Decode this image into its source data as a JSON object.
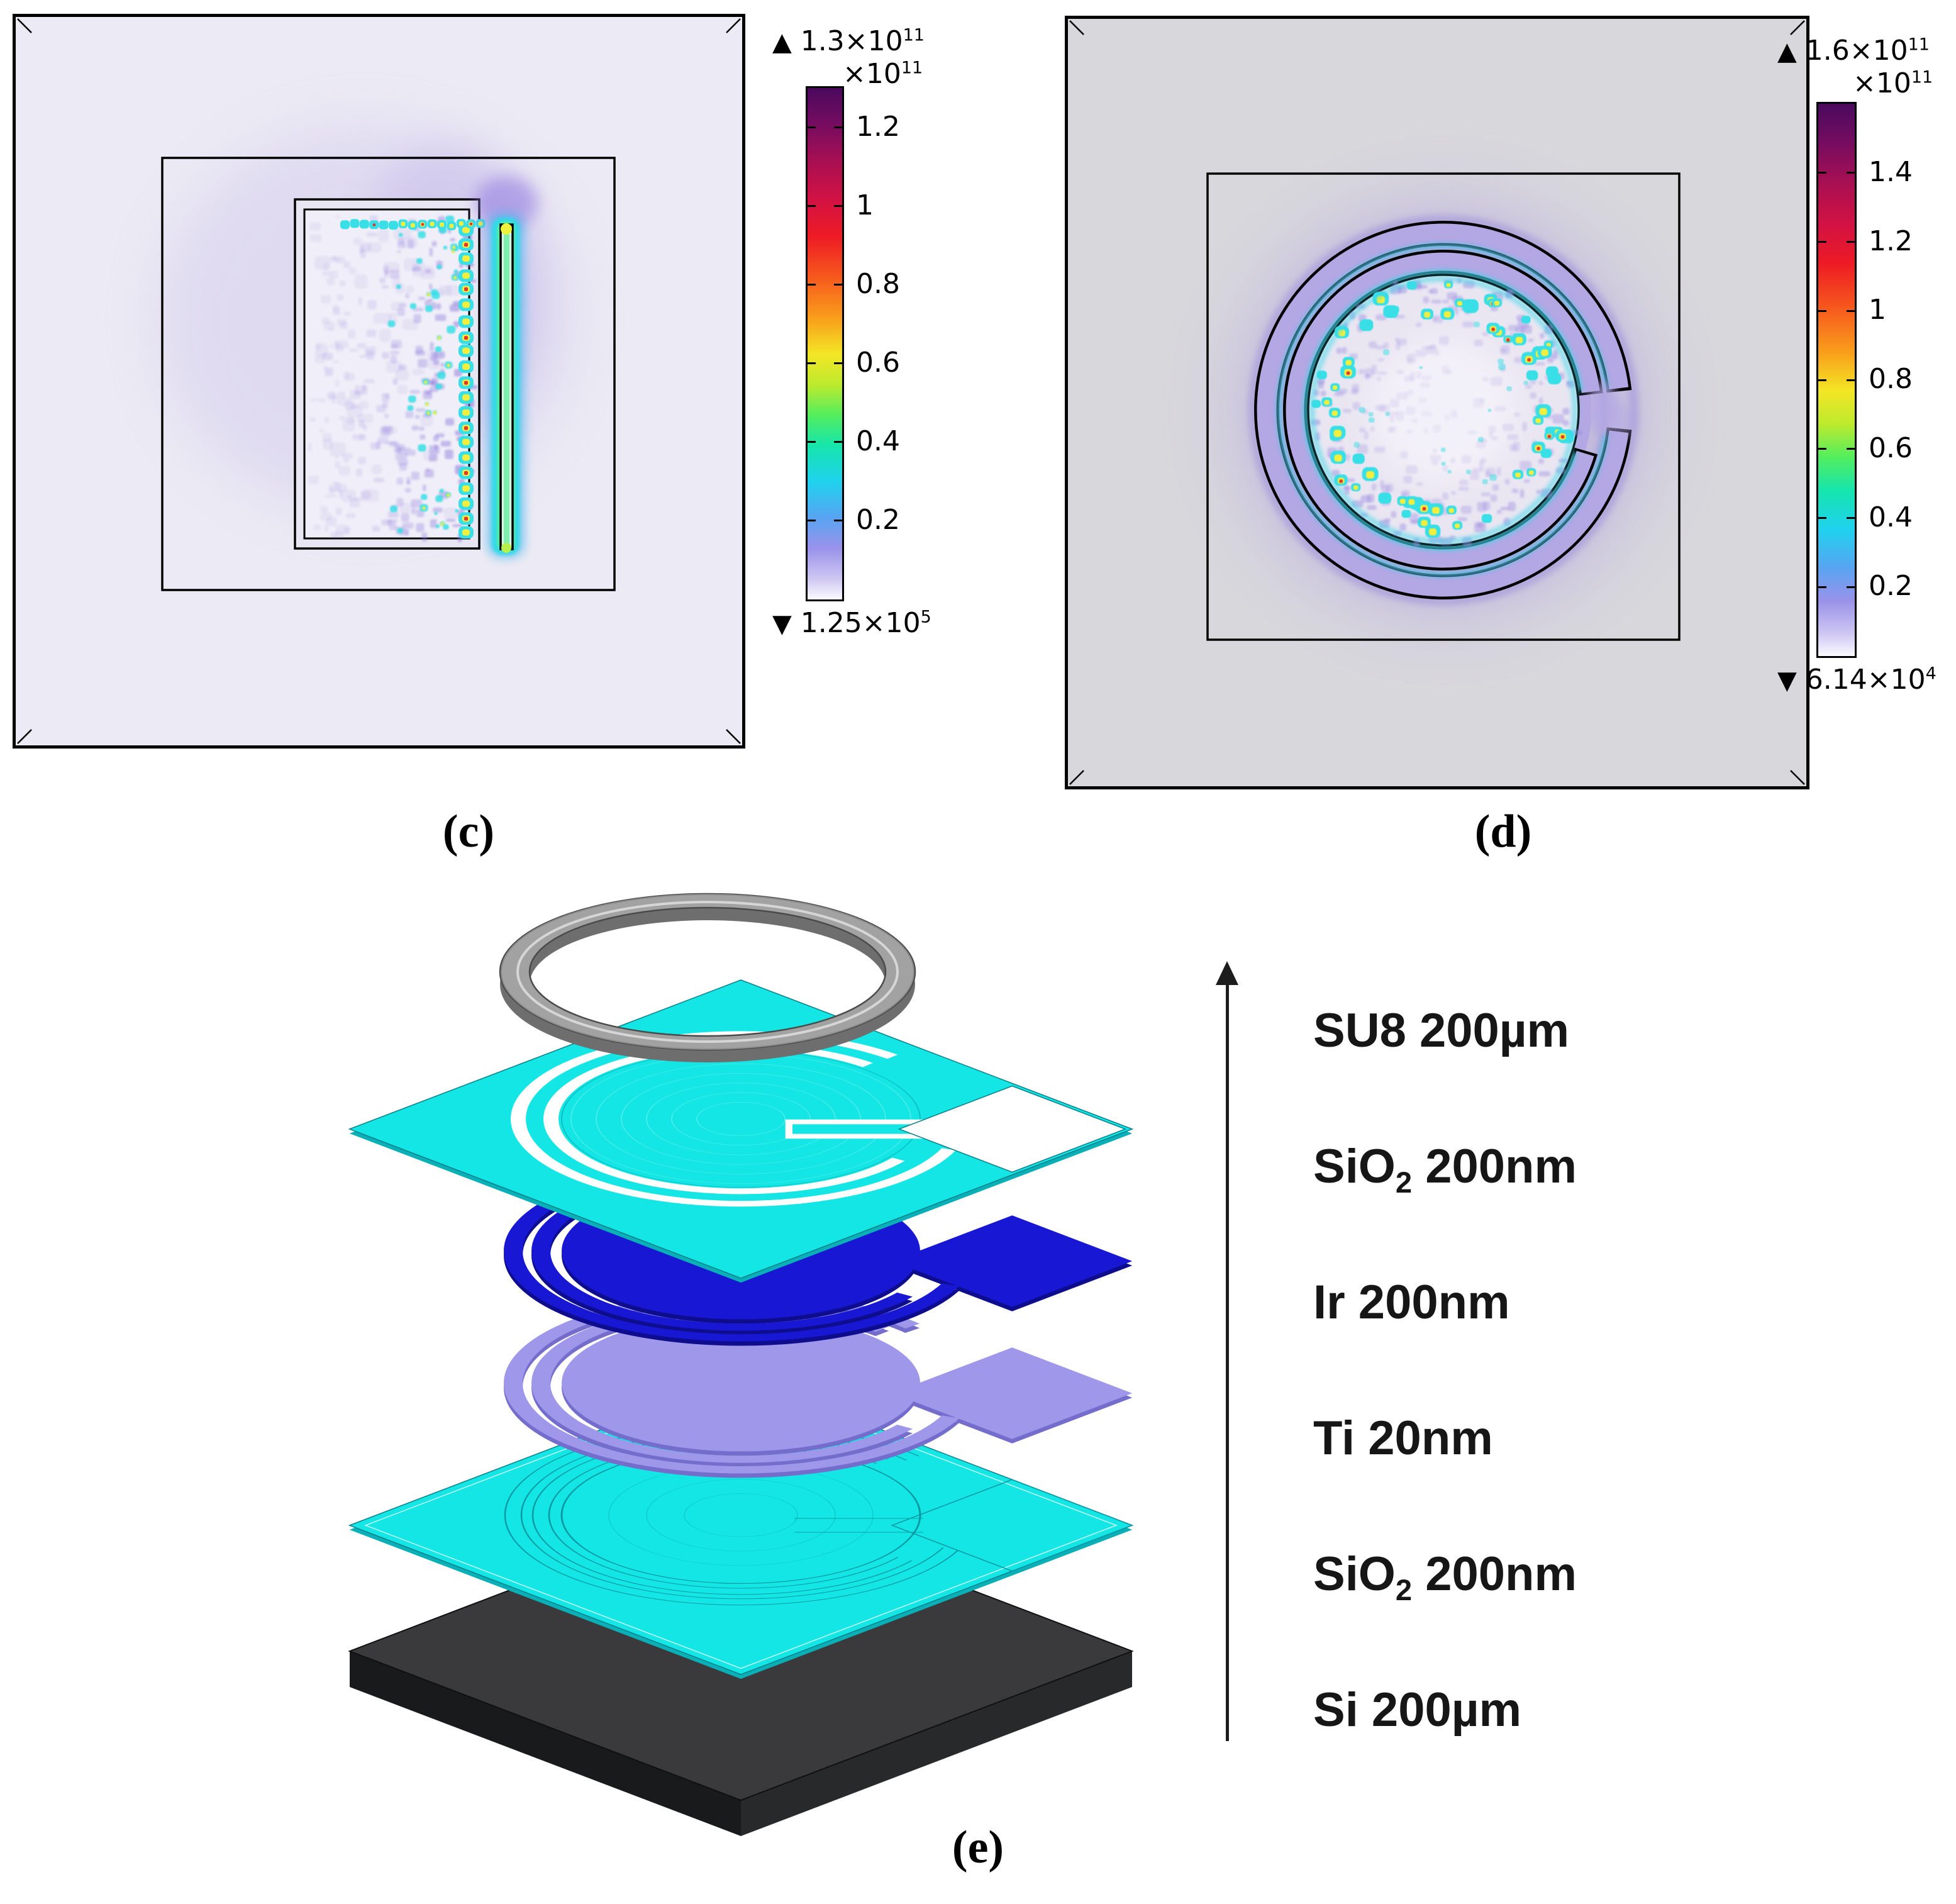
{
  "figure": {
    "captions": {
      "c": "(c)",
      "d": "(d)",
      "e": "(e)"
    }
  },
  "panel_c": {
    "type": "surface-plot-rectangular-resonator",
    "colorbar": {
      "max_marker": "▲",
      "min_marker": "▼",
      "max_label": {
        "base": "1.3×10",
        "exp": "11"
      },
      "scale_label": {
        "base": "×10",
        "exp": "11"
      },
      "min_label": {
        "base": "1.25×10",
        "exp": "5"
      },
      "max_value": 1.3,
      "tick_values": [
        1.2,
        1,
        0.8,
        0.6,
        0.4,
        0.2
      ],
      "tick_labels": [
        "1.2",
        "1",
        "0.8",
        "0.6",
        "0.4",
        "0.2"
      ]
    }
  },
  "panel_d": {
    "type": "surface-plot-circular-spiral-resonator",
    "colorbar": {
      "max_marker": "▲",
      "min_marker": "▼",
      "max_label": {
        "base": "1.6×10",
        "exp": "11"
      },
      "scale_label": {
        "base": "×10",
        "exp": "11"
      },
      "min_label": {
        "base": "6.14×10",
        "exp": "4"
      },
      "max_value": 1.6,
      "tick_values": [
        1.4,
        1.2,
        1,
        0.8,
        0.6,
        0.4,
        0.2
      ],
      "tick_labels": [
        "1.4",
        "1.2",
        "1",
        "0.8",
        "0.6",
        "0.4",
        "0.2"
      ]
    }
  },
  "panel_e": {
    "type": "exploded-layer-stack",
    "layers": [
      {
        "base": "SU8 200µm",
        "sub": "",
        "rest": ""
      },
      {
        "base": "SiO",
        "sub": "2",
        "rest": " 200nm"
      },
      {
        "base": "Ir 200nm",
        "sub": "",
        "rest": ""
      },
      {
        "base": "Ti 20nm",
        "sub": "",
        "rest": ""
      },
      {
        "base": "SiO",
        "sub": "2",
        "rest": " 200nm"
      },
      {
        "base": "Si 200µm",
        "sub": "",
        "rest": ""
      }
    ]
  },
  "colors": {
    "panel_c_background": "#eceaf4",
    "panel_d_background": "#d8d7dc",
    "colormap_max": "#4a095e",
    "colormap_min": "#fbfaff",
    "hotspot_cyan": "#38dfe6",
    "hotspot_yellow": "#f2ee3b",
    "hotspot_red": "#e3352b",
    "field_purple": "#8d7bdb",
    "sio2_cyan": "#13e6e4",
    "ir_blue": "#1717d4",
    "ti_periwinkle": "#9e97ea",
    "su8_gray": "#a2a2a2",
    "si_dark": "#3a3a3c"
  }
}
